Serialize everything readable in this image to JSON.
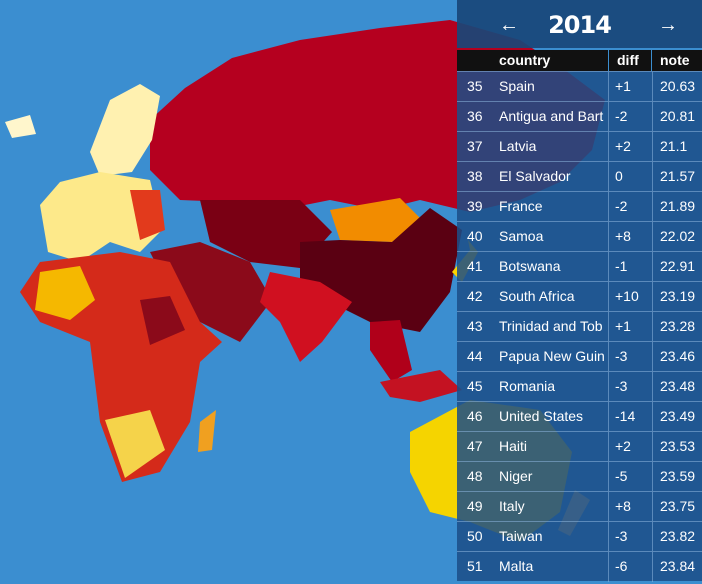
{
  "header": {
    "prev": "←",
    "year": "2014",
    "next": "→"
  },
  "table": {
    "columns": [
      "country",
      "diff",
      "note"
    ],
    "rows": [
      [
        "35",
        "Spain",
        "+1",
        "20.63"
      ],
      [
        "36",
        "Antigua and Bart",
        "-2",
        "20.81"
      ],
      [
        "37",
        "Latvia",
        "+2",
        "21.1"
      ],
      [
        "38",
        "El Salvador",
        "0",
        "21.57"
      ],
      [
        "39",
        "France",
        "-2",
        "21.89"
      ],
      [
        "40",
        "Samoa",
        "+8",
        "22.02"
      ],
      [
        "41",
        "Botswana",
        "-1",
        "22.91"
      ],
      [
        "42",
        "South Africa",
        "+10",
        "23.19"
      ],
      [
        "43",
        "Trinidad and Tob",
        "+1",
        "23.28"
      ],
      [
        "44",
        "Papua New Guin",
        "-3",
        "23.46"
      ],
      [
        "45",
        "Romania",
        "-3",
        "23.48"
      ],
      [
        "46",
        "United States",
        "-14",
        "23.49"
      ],
      [
        "47",
        "Haiti",
        "+2",
        "23.53"
      ],
      [
        "48",
        "Niger",
        "-5",
        "23.59"
      ],
      [
        "49",
        "Italy",
        "+8",
        "23.75"
      ],
      [
        "50",
        "Taiwan",
        "-3",
        "23.82"
      ],
      [
        "51",
        "Malta",
        "-6",
        "23.84"
      ]
    ]
  }
}
